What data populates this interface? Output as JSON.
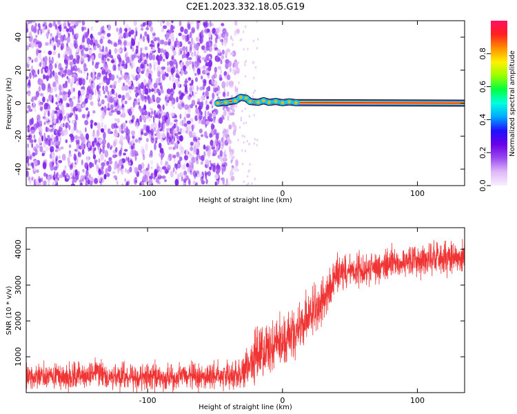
{
  "figure": {
    "title": "C2E1.2023.332.18.05.G19"
  },
  "chart_data": [
    {
      "type": "heatmap",
      "title": "C2E1.2023.332.18.05.G19",
      "xlabel": "Height of straight line (km)",
      "ylabel": "Frequency (Hz)",
      "xlim": [
        -190,
        135
      ],
      "ylim": [
        -50,
        50
      ],
      "xticks": [
        -100,
        0,
        100
      ],
      "yticks": [
        -40,
        -20,
        0,
        20,
        40
      ],
      "colorbar": {
        "label": "Normalized spectral amplitude",
        "range": [
          0,
          1
        ],
        "ticks": [
          0.0,
          0.2,
          0.4,
          0.6,
          0.8
        ],
        "colors": [
          "#f8f0ff",
          "#e0b8f8",
          "#9a4af0",
          "#6a00e8",
          "#2010ff",
          "#00a8ff",
          "#00ffe0",
          "#00ff40",
          "#9aff00",
          "#fff000",
          "#ff9000",
          "#ff2020",
          "#ff1060"
        ]
      },
      "features": {
        "noise_region_x": [
          -190,
          -33
        ],
        "noise_amplitude_range": [
          0.02,
          0.22
        ],
        "main_line": {
          "x_range": [
            -50,
            135
          ],
          "frequency_hz": 0,
          "points": [
            {
              "x": -48,
              "y": 0.0
            },
            {
              "x": -42,
              "y": 0.5
            },
            {
              "x": -35,
              "y": 1.5
            },
            {
              "x": -31,
              "y": 3.5
            },
            {
              "x": -27,
              "y": 3.0
            },
            {
              "x": -24,
              "y": 1.0
            },
            {
              "x": -18,
              "y": 0.5
            },
            {
              "x": -14,
              "y": 1.5
            },
            {
              "x": -10,
              "y": 0.5
            },
            {
              "x": -5,
              "y": 1.0
            },
            {
              "x": 0,
              "y": 0.3
            },
            {
              "x": 5,
              "y": 0.8
            },
            {
              "x": 10,
              "y": 0.3
            },
            {
              "x": 135,
              "y": 0.0
            }
          ]
        }
      }
    },
    {
      "type": "line",
      "xlabel": "Height of straight line (km)",
      "ylabel": "SNR (10 * v/v)",
      "xlim": [
        -190,
        135
      ],
      "ylim": [
        0,
        4600
      ],
      "xticks": [
        -100,
        0,
        100
      ],
      "yticks": [
        1000,
        2000,
        3000,
        4000
      ],
      "color": "#f03434",
      "series": [
        {
          "x": [
            -190,
            -175,
            -160,
            -145,
            -140,
            -138,
            -130,
            -110,
            -90,
            -70,
            -50,
            -40,
            -30,
            -25,
            -20,
            -15,
            -10,
            0,
            10,
            20,
            30,
            36,
            38,
            40,
            50,
            70,
            90,
            110,
            125,
            135
          ],
          "values": [
            450,
            430,
            440,
            450,
            460,
            700,
            440,
            430,
            430,
            440,
            450,
            470,
            550,
            800,
            1000,
            1150,
            1250,
            1400,
            1700,
            2100,
            2600,
            2800,
            3200,
            3350,
            3400,
            3500,
            3650,
            3750,
            3800,
            3800
          ],
          "noise_amplitude": [
            250,
            250,
            250,
            250,
            250,
            300,
            250,
            250,
            250,
            250,
            250,
            260,
            300,
            400,
            500,
            550,
            500,
            450,
            450,
            450,
            450,
            450,
            400,
            350,
            300,
            300,
            300,
            300,
            300,
            300
          ]
        }
      ]
    }
  ]
}
